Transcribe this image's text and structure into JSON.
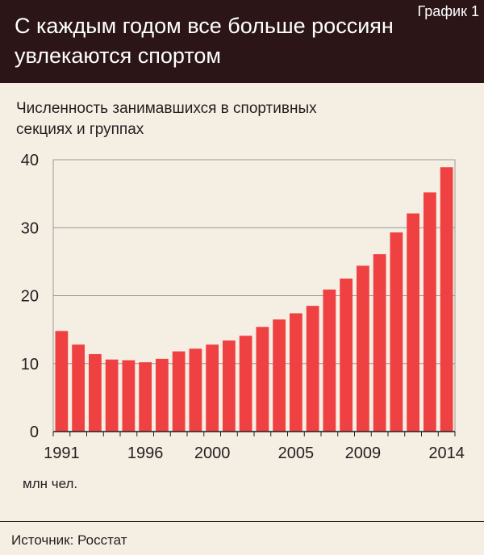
{
  "header": {
    "title": "С каждым годом все больше россиян увлекаются спортом",
    "label": "График 1"
  },
  "subtitle": "Численность занимавшихся в спортивных секциях и группах",
  "unit_label": "млн чел.",
  "source": "Источник: Росстат",
  "colors": {
    "bar": "#ef4142",
    "header_bg": "#2b1516",
    "background": "#f5eee3"
  },
  "chart_data": {
    "type": "bar",
    "categories": [
      "1991",
      "1992",
      "1993",
      "1994",
      "1995",
      "1996",
      "1997",
      "1998",
      "1999",
      "2000",
      "2001",
      "2002",
      "2003",
      "2004",
      "2005",
      "2006",
      "2007",
      "2008",
      "2009",
      "2010",
      "2011",
      "2012",
      "2013",
      "2014"
    ],
    "tick_labels": [
      "1991",
      "1996",
      "2000",
      "2005",
      "2009",
      "2014"
    ],
    "values": [
      14.8,
      12.8,
      11.4,
      10.6,
      10.5,
      10.2,
      10.7,
      11.8,
      12.2,
      12.8,
      13.4,
      14.1,
      15.4,
      16.5,
      17.4,
      18.5,
      20.9,
      22.5,
      24.4,
      26.1,
      29.3,
      32.1,
      35.2,
      38.9
    ],
    "ylim": [
      0,
      40
    ],
    "yticks": [
      0,
      10,
      20,
      30,
      40
    ],
    "xlabel": "",
    "ylabel": "млн чел.",
    "grid": true
  }
}
